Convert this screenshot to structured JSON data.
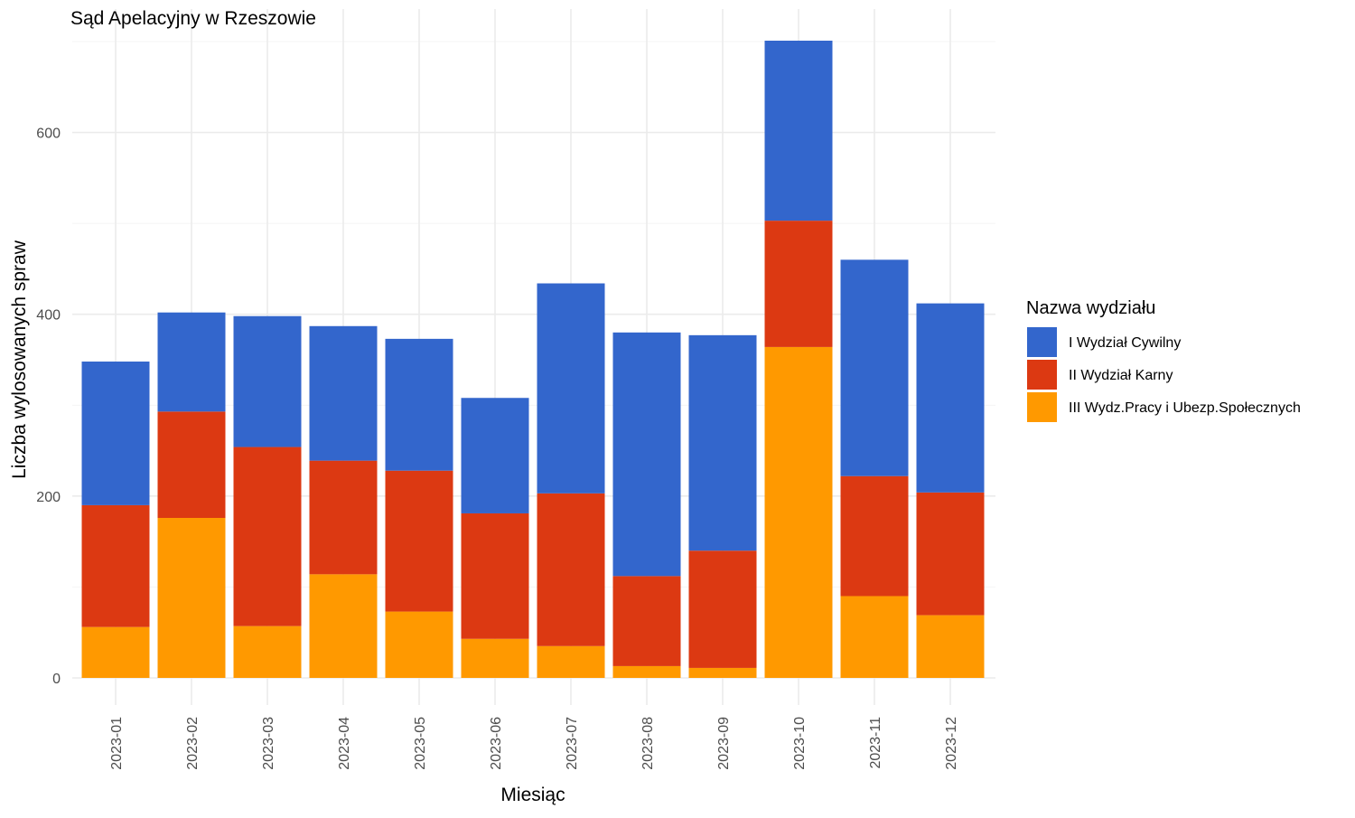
{
  "chart_data": {
    "type": "bar",
    "stacked": true,
    "title": "Sąd Apelacyjny w Rzeszowie",
    "xlabel": "Miesiąc",
    "ylabel": "Liczba wylosowanych spraw",
    "ylim": [
      0,
      700
    ],
    "yticks": [
      0,
      200,
      400,
      600
    ],
    "grid": true,
    "legend": {
      "title": "Nazwa wydziału",
      "placement": "right"
    },
    "categories": [
      "2023-01",
      "2023-02",
      "2023-03",
      "2023-04",
      "2023-05",
      "2023-06",
      "2023-07",
      "2023-08",
      "2023-09",
      "2023-10",
      "2023-11",
      "2023-12"
    ],
    "series": [
      {
        "name": "III Wydz.Pracy i Ubezp.Społecznych",
        "color": "#FF9900",
        "values": [
          56,
          176,
          57,
          114,
          73,
          43,
          35,
          13,
          11,
          364,
          90,
          69
        ]
      },
      {
        "name": "II Wydział Karny",
        "color": "#DC3912",
        "values": [
          134,
          117,
          197,
          125,
          155,
          138,
          168,
          99,
          129,
          139,
          132,
          135
        ]
      },
      {
        "name": "I Wydział Cywilny",
        "color": "#3366CC",
        "values": [
          158,
          109,
          144,
          148,
          145,
          127,
          231,
          268,
          237,
          198,
          238,
          208
        ]
      }
    ],
    "legend_order": [
      "I Wydział Cywilny",
      "II Wydział Karny",
      "III Wydz.Pracy i Ubezp.Społecznych"
    ]
  }
}
